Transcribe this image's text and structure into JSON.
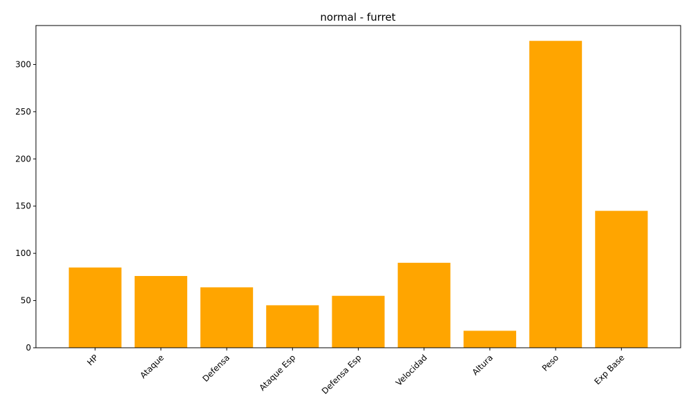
{
  "chart_data": {
    "type": "bar",
    "title": "normal - furret",
    "xlabel": "",
    "ylabel": "",
    "categories": [
      "HP",
      "Ataque",
      "Defensa",
      "Ataque Esp",
      "Defensa Esp",
      "Velocidad",
      "Altura",
      "Peso",
      "Exp Base"
    ],
    "values": [
      85,
      76,
      64,
      45,
      55,
      90,
      18,
      325,
      145
    ],
    "ylim": [
      0,
      341.25
    ],
    "yticks": [
      0,
      50,
      100,
      150,
      200,
      250,
      300
    ],
    "bar_color": "#FFA500",
    "grid": false,
    "x_tick_rotation": 45
  }
}
